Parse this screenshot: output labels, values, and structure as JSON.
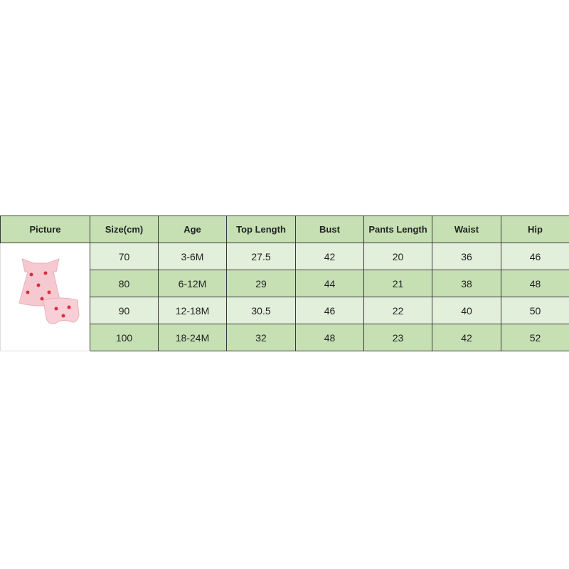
{
  "headers": [
    "Picture",
    "Size(cm)",
    "Age",
    "Top Length",
    "Bust",
    "Pants Length",
    "Waist",
    "Hip"
  ],
  "rows": [
    [
      "70",
      "3-6M",
      "27.5",
      "42",
      "20",
      "36",
      "46"
    ],
    [
      "80",
      "6-12M",
      "29",
      "44",
      "21",
      "38",
      "48"
    ],
    [
      "90",
      "12-18M",
      "30.5",
      "46",
      "22",
      "40",
      "50"
    ],
    [
      "100",
      "18-24M",
      "32",
      "48",
      "23",
      "42",
      "52"
    ]
  ],
  "colors": {
    "header": "#c6e0b4",
    "row_light": "#e2efda",
    "row_dark": "#c6e0b4",
    "garment": "#f6c9d0",
    "cherry": "#d6303a"
  },
  "picture": {
    "icon": "pink-cherry-print-top-and-bloomers"
  }
}
